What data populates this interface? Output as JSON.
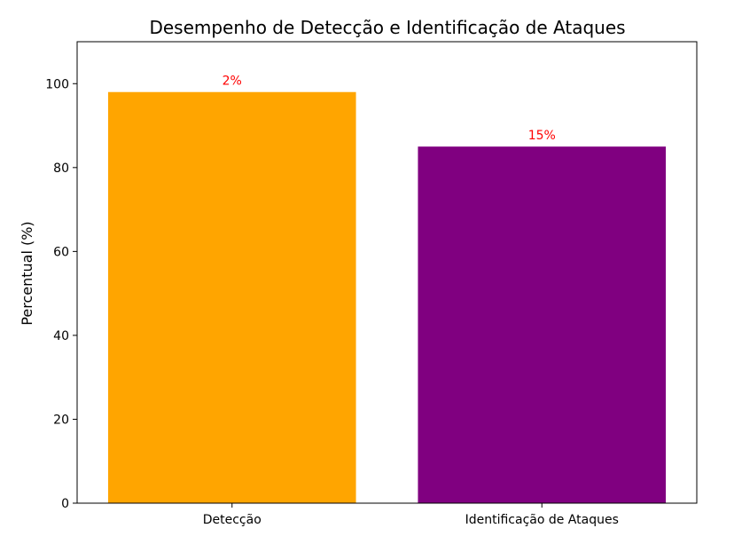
{
  "chart_data": {
    "type": "bar",
    "title": "Desempenho de Detecção e Identificação de Ataques",
    "xlabel": "",
    "ylabel": "Percentual (%)",
    "categories": [
      "Detecção",
      "Identificação de Ataques"
    ],
    "values": [
      98,
      85
    ],
    "bar_labels": [
      "2%",
      "15%"
    ],
    "bar_colors": [
      "#FFA500",
      "#800080"
    ],
    "label_color": "#FF0000",
    "ylim": [
      0,
      110
    ],
    "yticks": [
      0,
      20,
      40,
      60,
      80,
      100
    ],
    "grid": false,
    "legend": "none"
  }
}
